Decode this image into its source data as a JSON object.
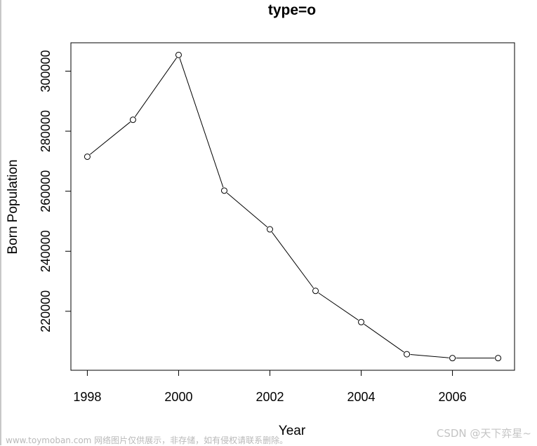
{
  "chart_data": {
    "type": "line",
    "title": "type=o",
    "xlabel": "Year",
    "ylabel": "Born Population",
    "x": [
      1998,
      1999,
      2000,
      2001,
      2002,
      2003,
      2004,
      2005,
      2006,
      2007
    ],
    "series": [
      {
        "values": [
          271500,
          283800,
          305400,
          260200,
          247300,
          226800,
          216400,
          205700,
          204400,
          204400
        ]
      }
    ],
    "xticks": [
      1998,
      2000,
      2002,
      2004,
      2006
    ],
    "yticks": [
      220000,
      240000,
      260000,
      280000,
      300000
    ],
    "xtick_labels": [
      "1998",
      "2000",
      "2002",
      "2004",
      "2006"
    ],
    "ytick_labels": [
      "220000",
      "240000",
      "260000",
      "280000",
      "300000"
    ],
    "xlim": [
      1997.64,
      2007.36
    ],
    "ylim": [
      200350,
      309450
    ],
    "marker": "open-circle",
    "line_color": "#000000",
    "grid": false,
    "legend": "none"
  },
  "watermark": {
    "left_text": "www.toymoban.com 网络图片仅供展示，非存储，如有侵权请联系删除。",
    "right_text": "CSDN @天下弈星~"
  }
}
